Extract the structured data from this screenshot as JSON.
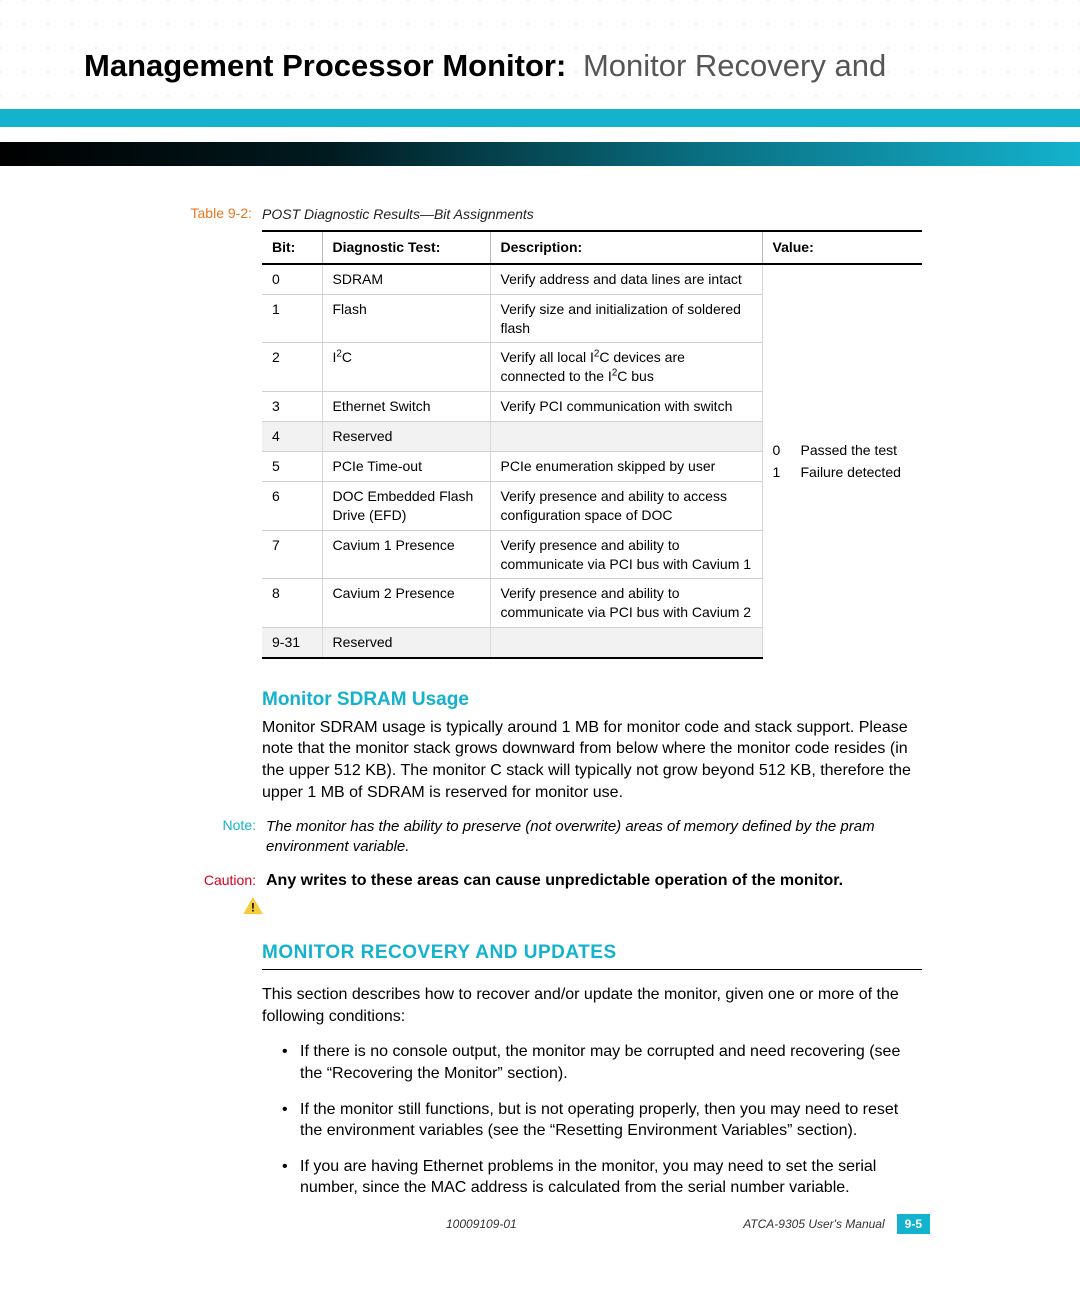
{
  "colors": {
    "accent": "#14b2cd",
    "accent_orange": "#e87722",
    "caution_red": "#d9001b",
    "shade_bg": "#f2f2f2",
    "border_light": "#d0d0d0",
    "black": "#000000"
  },
  "header": {
    "title_bold": "Management Processor Monitor:",
    "title_light": "Monitor Recovery and"
  },
  "table": {
    "caption_prefix": "Table 9-2:",
    "caption_text": "POST Diagnostic Results—Bit Assignments",
    "columns": [
      "Bit:",
      "Diagnostic Test:",
      "Description:",
      "Value:"
    ],
    "rows": [
      {
        "bit": "0",
        "test": "SDRAM",
        "desc": "Verify address and data lines are intact",
        "shade": false
      },
      {
        "bit": "1",
        "test": "Flash",
        "desc": " Verify size and initialization of soldered flash",
        "shade": false
      },
      {
        "bit": "2",
        "test": "I²C",
        "desc": "Verify all local I²C devices are connected to the I²C bus",
        "shade": false,
        "super": true
      },
      {
        "bit": "3",
        "test": "Ethernet Switch",
        "desc": "Verify PCI communication with switch",
        "shade": false
      },
      {
        "bit": "4",
        "test": "Reserved",
        "desc": "",
        "shade": true
      },
      {
        "bit": "5",
        "test": "PCIe Time-out",
        "desc": "PCIe enumeration skipped by user",
        "shade": false
      },
      {
        "bit": "6",
        "test": "DOC Embedded Flash Drive (EFD)",
        "desc": "Verify presence and ability to access configuration space of DOC",
        "shade": false
      },
      {
        "bit": "7",
        "test": "Cavium 1 Presence",
        "desc": "Verify presence and ability to communicate via PCI bus with Cavium 1",
        "shade": false
      },
      {
        "bit": "8",
        "test": "Cavium 2 Presence",
        "desc": "Verify presence and ability to communicate via PCI bus with Cavium 2",
        "shade": false
      },
      {
        "bit": "9-31",
        "test": "Reserved",
        "desc": "",
        "shade": true
      }
    ],
    "value_legend": [
      {
        "code": "0",
        "text": "Passed the test"
      },
      {
        "code": "1",
        "text": "Failure detected"
      }
    ]
  },
  "section_sdram": {
    "heading": "Monitor SDRAM Usage",
    "body": "Monitor SDRAM usage is typically around 1 MB for monitor code and stack support. Please note that the monitor stack grows downward from below where the monitor code resides (in the upper 512 KB). The monitor C stack will typically not grow beyond 512 KB, therefore the upper 1 MB of SDRAM is reserved for monitor use."
  },
  "note": {
    "label": "Note:",
    "body": "The monitor has the ability to preserve (not overwrite) areas of memory defined by the pram environment variable."
  },
  "caution": {
    "label": "Caution:",
    "body": "Any writes to these areas can cause unpredictable operation of the monitor."
  },
  "section_recovery": {
    "heading": "MONITOR RECOVERY AND UPDATES",
    "intro": "This section describes how to recover and/or update the monitor, given one or more of the following conditions:",
    "bullets": [
      "If there is no console output, the monitor may be corrupted and need recovering (see the “Recovering the Monitor” section).",
      "If the monitor still functions, but is not operating properly, then you may need to reset the environment variables (see the “Resetting Environment Variables” section).",
      "If you are having Ethernet problems in the monitor, you may need to set the serial number, since the MAC address is calculated from the serial number variable."
    ]
  },
  "footer": {
    "docnum": "10009109-01",
    "manual": "ATCA-9305 User's Manual",
    "page": "9-5"
  }
}
